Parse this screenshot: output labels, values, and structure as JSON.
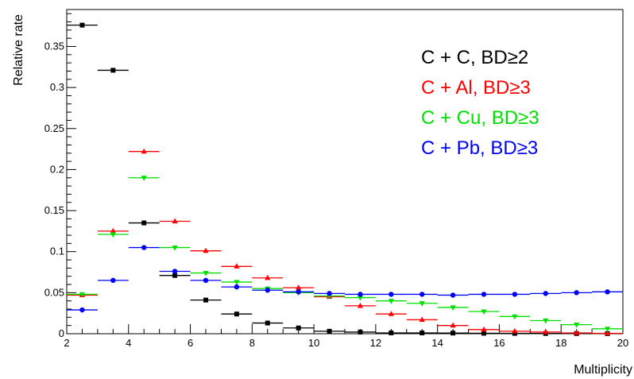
{
  "chart_data": {
    "type": "scatter",
    "xlabel": "Multiplicity",
    "ylabel": "Relative rate",
    "xlim": [
      2,
      20
    ],
    "ylim": [
      0,
      0.395
    ],
    "x_ticks": [
      2,
      4,
      6,
      8,
      10,
      12,
      14,
      16,
      18,
      20
    ],
    "y_ticks": [
      0,
      0.05,
      0.1,
      0.15,
      0.2,
      0.25,
      0.3,
      0.35
    ],
    "y_tick_labels": [
      "0",
      "0.05",
      "0.1",
      "0.15",
      "0.2",
      "0.25",
      "0.3",
      "0.35"
    ],
    "bin_width": 1,
    "grid": false,
    "legend_position": "top-right",
    "series": [
      {
        "name": "C + C,  BD≥2",
        "color": "#000000",
        "marker": "square",
        "x": [
          2.5,
          3.5,
          4.5,
          5.5,
          6.5,
          7.5,
          8.5,
          9.5,
          10.5,
          11.5,
          12.5,
          13.5,
          14.5,
          15.5,
          16.5,
          17.5,
          18.5,
          19.5
        ],
        "values": [
          0.376,
          0.321,
          0.135,
          0.071,
          0.041,
          0.024,
          0.013,
          0.007,
          0.003,
          0.002,
          0.001,
          0.001,
          0.0008,
          0.0006,
          0.0004,
          0.0003,
          0.0002,
          0.0001
        ]
      },
      {
        "name": "C + Al,  BD≥3",
        "color": "#ff0000",
        "marker": "triangle",
        "x": [
          2.5,
          3.5,
          4.5,
          5.5,
          6.5,
          7.5,
          8.5,
          9.5,
          10.5,
          11.5,
          12.5,
          13.5,
          14.5,
          15.5,
          16.5,
          17.5,
          18.5,
          19.5
        ],
        "values": [
          0.047,
          0.125,
          0.222,
          0.137,
          0.101,
          0.082,
          0.068,
          0.056,
          0.045,
          0.034,
          0.024,
          0.017,
          0.01,
          0.005,
          0.003,
          0.002,
          0.001,
          0.0005
        ]
      },
      {
        "name": "C + Cu, BD≥3",
        "color": "#00e000",
        "marker": "triangle-down",
        "x": [
          2.5,
          3.5,
          4.5,
          5.5,
          6.5,
          7.5,
          8.5,
          9.5,
          10.5,
          11.5,
          12.5,
          13.5,
          14.5,
          15.5,
          16.5,
          17.5,
          18.5,
          19.5
        ],
        "values": [
          0.048,
          0.121,
          0.19,
          0.105,
          0.074,
          0.063,
          0.055,
          0.05,
          0.046,
          0.044,
          0.04,
          0.037,
          0.032,
          0.027,
          0.021,
          0.016,
          0.011,
          0.006
        ]
      },
      {
        "name": "C + Pb, BD≥3",
        "color": "#0000ff",
        "marker": "circle",
        "x": [
          2.5,
          3.5,
          4.5,
          5.5,
          6.5,
          7.5,
          8.5,
          9.5,
          10.5,
          11.5,
          12.5,
          13.5,
          14.5,
          15.5,
          16.5,
          17.5,
          18.5,
          19.5
        ],
        "values": [
          0.029,
          0.065,
          0.105,
          0.076,
          0.065,
          0.057,
          0.053,
          0.051,
          0.049,
          0.048,
          0.048,
          0.048,
          0.047,
          0.048,
          0.048,
          0.049,
          0.05,
          0.051
        ]
      }
    ]
  }
}
